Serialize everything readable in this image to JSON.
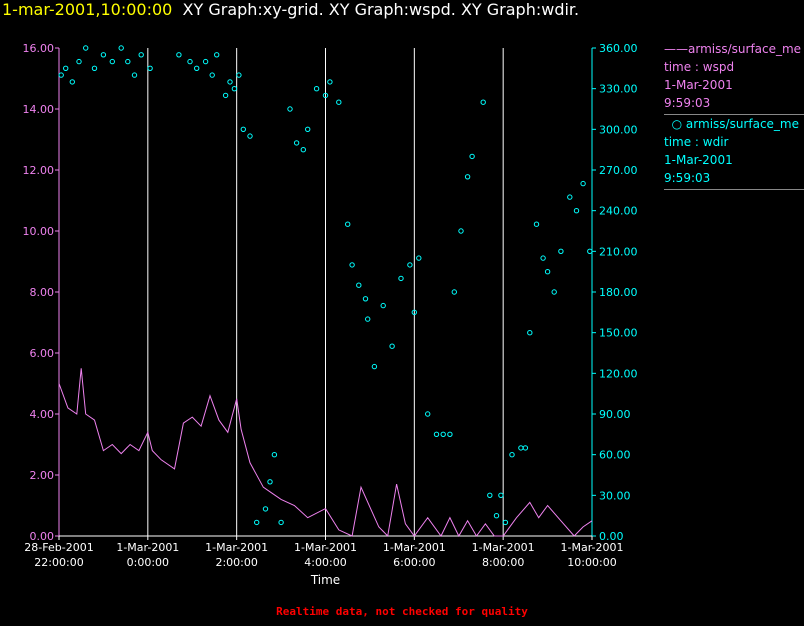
{
  "header": {
    "timestamp": "1-mar-2001,10:00:00",
    "graphs": "XY Graph:xy-grid.  XY Graph:wspd.  XY Graph:wdir."
  },
  "footer": {
    "note": "Realtime data, not checked for quality"
  },
  "legend": [
    {
      "series": "armiss/surface_me",
      "field": "time : wspd",
      "date": "1-Mar-2001",
      "time": "9:59:03",
      "color": "#ee82ee",
      "marker": "line"
    },
    {
      "series": "armiss/surface_me",
      "field": "time : wdir",
      "date": "1-Mar-2001",
      "time": "9:59:03",
      "color": "#00ffff",
      "marker": "circle"
    }
  ],
  "chart_data": {
    "type": "line",
    "xlabel": "Time",
    "xlim_hours": [
      0,
      12
    ],
    "x_ticks": [
      {
        "h": 0,
        "date": "28-Feb-2001",
        "time": "22:00:00"
      },
      {
        "h": 2,
        "date": "1-Mar-2001",
        "time": "0:00:00"
      },
      {
        "h": 4,
        "date": "1-Mar-2001",
        "time": "2:00:00"
      },
      {
        "h": 6,
        "date": "1-Mar-2001",
        "time": "4:00:00"
      },
      {
        "h": 8,
        "date": "1-Mar-2001",
        "time": "6:00:00"
      },
      {
        "h": 10,
        "date": "1-Mar-2001",
        "time": "8:00:00"
      },
      {
        "h": 12,
        "date": "1-Mar-2001",
        "time": "10:00:00"
      }
    ],
    "y_left": {
      "range": [
        0,
        16
      ],
      "ticks": [
        "0.00",
        "2.00",
        "4.00",
        "6.00",
        "8.00",
        "10.00",
        "12.00",
        "14.00",
        "16.00"
      ],
      "color": "#ee82ee"
    },
    "y_right": {
      "range": [
        0,
        360
      ],
      "ticks": [
        "0.00",
        "30.00",
        "60.00",
        "90.00",
        "120.00",
        "150.00",
        "180.00",
        "210.00",
        "240.00",
        "270.00",
        "300.00",
        "330.00",
        "360.00"
      ],
      "color": "#00ffff"
    },
    "grid": "vertical lines every 2 hours",
    "series": [
      {
        "name": "armiss/surface_me time : wspd",
        "axis": "left",
        "x": [
          0,
          0.2,
          0.4,
          0.5,
          0.6,
          0.8,
          1.0,
          1.2,
          1.4,
          1.6,
          1.8,
          2.0,
          2.1,
          2.3,
          2.6,
          2.8,
          3.0,
          3.2,
          3.4,
          3.6,
          3.8,
          4.0,
          4.1,
          4.3,
          4.6,
          4.8,
          5.0,
          5.3,
          5.6,
          6.0,
          6.3,
          6.6,
          6.8,
          7.2,
          7.4,
          7.6,
          7.8,
          8.0,
          8.3,
          8.6,
          8.8,
          9.0,
          9.2,
          9.4,
          9.6,
          9.8,
          10.0,
          10.3,
          10.6,
          10.8,
          11.0,
          11.3,
          11.6,
          11.8,
          12.0
        ],
        "y": [
          5.0,
          4.2,
          4.0,
          5.5,
          4.0,
          3.8,
          2.8,
          3.0,
          2.7,
          3.0,
          2.8,
          3.4,
          2.8,
          2.5,
          2.2,
          3.7,
          3.9,
          3.6,
          4.6,
          3.8,
          3.4,
          4.5,
          3.5,
          2.4,
          1.6,
          1.4,
          1.2,
          1.0,
          0.6,
          0.9,
          0.2,
          0.0,
          1.6,
          0.3,
          0.0,
          1.7,
          0.4,
          0.0,
          0.6,
          0.0,
          0.6,
          0.0,
          0.5,
          0.0,
          0.4,
          0.0,
          0.0,
          0.6,
          1.1,
          0.6,
          1.0,
          0.5,
          0.0,
          0.3,
          0.5
        ]
      },
      {
        "name": "armiss/surface_me time : wdir",
        "axis": "right",
        "x": [
          0.05,
          0.15,
          0.3,
          0.45,
          0.6,
          0.8,
          1.0,
          1.2,
          1.4,
          1.55,
          1.7,
          1.85,
          2.05,
          2.7,
          2.95,
          3.1,
          3.3,
          3.45,
          3.55,
          3.75,
          3.85,
          3.95,
          4.05,
          4.15,
          4.3,
          4.45,
          4.65,
          4.75,
          4.85,
          5.0,
          5.2,
          5.35,
          5.5,
          5.6,
          5.8,
          6.0,
          6.1,
          6.3,
          6.5,
          6.6,
          6.75,
          6.9,
          6.95,
          7.1,
          7.3,
          7.5,
          7.7,
          7.9,
          8.0,
          8.1,
          8.3,
          8.5,
          8.65,
          8.8,
          8.9,
          9.05,
          9.2,
          9.3,
          9.55,
          9.7,
          9.85,
          9.95,
          10.05,
          10.2,
          10.4,
          10.5,
          10.6,
          10.75,
          10.9,
          11.0,
          11.15,
          11.3,
          11.5,
          11.65,
          11.8,
          11.95
        ],
        "y": [
          340,
          345,
          335,
          350,
          360,
          345,
          355,
          350,
          360,
          350,
          340,
          355,
          345,
          355,
          350,
          345,
          350,
          340,
          355,
          325,
          335,
          330,
          340,
          300,
          295,
          10,
          20,
          40,
          60,
          10,
          315,
          290,
          285,
          300,
          330,
          325,
          335,
          320,
          230,
          200,
          185,
          175,
          160,
          125,
          170,
          140,
          190,
          200,
          165,
          205,
          90,
          75,
          75,
          75,
          180,
          225,
          265,
          280,
          320,
          30,
          15,
          30,
          10,
          60,
          65,
          65,
          150,
          230,
          205,
          195,
          180,
          210,
          250,
          240,
          260,
          210
        ]
      }
    ]
  }
}
